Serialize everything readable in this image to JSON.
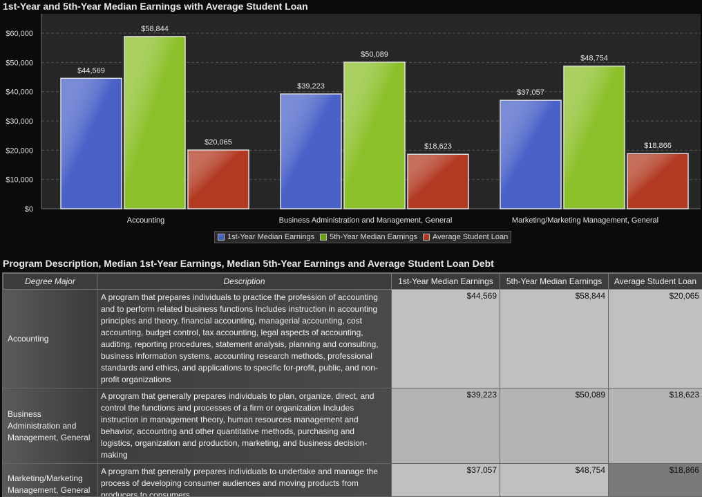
{
  "chart": {
    "title": "1st-Year and 5th-Year Median Earnings with Average Student Loan"
  },
  "chart_data": {
    "type": "bar",
    "categories": [
      "Accounting",
      "Business Administration and Management, General",
      "Marketing/Marketing Management, General"
    ],
    "series": [
      {
        "name": "1st-Year Median Earnings",
        "values": [
          44569,
          39223,
          37057
        ],
        "labels": [
          "$44,569",
          "$39,223",
          "$37,057"
        ],
        "color": "#4a62c8"
      },
      {
        "name": "5th-Year Median Earnings",
        "values": [
          58844,
          50089,
          48754
        ],
        "labels": [
          "$58,844",
          "$50,089",
          "$48,754"
        ],
        "color": "#8cc02a"
      },
      {
        "name": "Average Student Loan",
        "values": [
          20065,
          18623,
          18866
        ],
        "labels": [
          "$20,065",
          "$18,623",
          "$18,866"
        ],
        "color": "#b23a22"
      }
    ],
    "yticks": [
      "$0",
      "$10,000",
      "$20,000",
      "$30,000",
      "$40,000",
      "$50,000",
      "$60,000"
    ],
    "ylim": [
      0,
      60000
    ],
    "grid": true,
    "legend": "bottom-center"
  },
  "legend": {
    "s1": "1st-Year Median Earnings",
    "s2": "5th-Year Median Earnings",
    "s3": "Average Student Loan"
  },
  "table": {
    "title": "Program Description, Median 1st-Year Earnings, Median 5th-Year Earnings and Average Student Loan Debt",
    "headers": [
      "Degree Major",
      "Description",
      "1st-Year Median Earnings",
      "5th-Year Median Earnings",
      "Average Student Loan"
    ],
    "rows": [
      {
        "major": "Accounting",
        "desc": "A program that prepares individuals to practice the profession of accounting and to perform related business functions  Includes instruction in accounting principles and theory, financial accounting, managerial accounting, cost accounting, budget control, tax accounting, legal aspects of accounting, auditing, reporting procedures, statement analysis, planning and consulting, business information systems, accounting research methods, professional standards and ethics, and applications to specific for-profit, public, and non-profit organizations",
        "y1": "$44,569",
        "y5": "$58,844",
        "loan": "$20,065"
      },
      {
        "major": "Business Administration and Management, General",
        "desc": "A program that generally prepares individuals to plan, organize, direct, and control the functions and processes of a firm or organization  Includes instruction in management theory, human resources management and behavior, accounting and other quantitative methods, purchasing and logistics, organization and production, marketing, and business decision-making",
        "y1": "$39,223",
        "y5": "$50,089",
        "loan": "$18,623"
      },
      {
        "major": "Marketing/Marketing Management, General",
        "desc": "A program that generally prepares individuals to undertake and manage the process of developing consumer audiences and moving products from producers to consumers",
        "y1": "$37,057",
        "y5": "$48,754",
        "loan": "$18,866"
      }
    ]
  }
}
